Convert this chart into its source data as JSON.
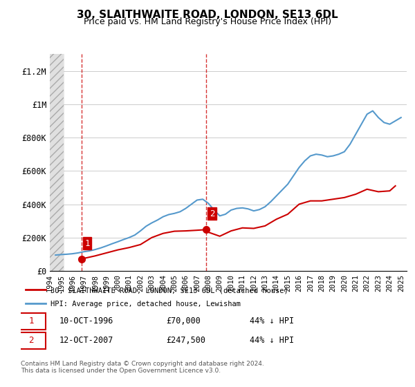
{
  "title": "30, SLAITHWAITE ROAD, LONDON, SE13 6DL",
  "subtitle": "Price paid vs. HM Land Registry's House Price Index (HPI)",
  "ylabel_ticks": [
    "£0",
    "£200K",
    "£400K",
    "£600K",
    "£800K",
    "£1M",
    "£1.2M"
  ],
  "ytick_values": [
    0,
    200000,
    400000,
    600000,
    800000,
    1000000,
    1200000
  ],
  "ylim": [
    0,
    1300000
  ],
  "xlim_start": 1994.0,
  "xlim_end": 2025.5,
  "sale1_x": 1996.78,
  "sale1_y": 70000,
  "sale1_label": "1",
  "sale2_x": 2007.78,
  "sale2_y": 247500,
  "sale2_label": "2",
  "vline1_x": 1996.78,
  "vline2_x": 2007.78,
  "red_line_color": "#cc0000",
  "blue_line_color": "#5599cc",
  "shaded_color": "#dddddd",
  "annotation_box_color": "#cc0000",
  "legend_label_red": "30, SLAITHWAITE ROAD, LONDON, SE13 6DL (detached house)",
  "legend_label_blue": "HPI: Average price, detached house, Lewisham",
  "footer": "Contains HM Land Registry data © Crown copyright and database right 2024.\nThis data is licensed under the Open Government Licence v3.0.",
  "table_row1": [
    "1",
    "10-OCT-1996",
    "£70,000",
    "44% ↓ HPI"
  ],
  "table_row2": [
    "2",
    "12-OCT-2007",
    "£247,500",
    "44% ↓ HPI"
  ],
  "hpi_years": [
    1994.5,
    1995.0,
    1995.5,
    1996.0,
    1996.5,
    1997.0,
    1997.5,
    1998.0,
    1998.5,
    1999.0,
    1999.5,
    2000.0,
    2000.5,
    2001.0,
    2001.5,
    2002.0,
    2002.5,
    2003.0,
    2003.5,
    2004.0,
    2004.5,
    2005.0,
    2005.5,
    2006.0,
    2006.5,
    2007.0,
    2007.5,
    2008.0,
    2008.5,
    2009.0,
    2009.5,
    2010.0,
    2010.5,
    2011.0,
    2011.5,
    2012.0,
    2012.5,
    2013.0,
    2013.5,
    2014.0,
    2014.5,
    2015.0,
    2015.5,
    2016.0,
    2016.5,
    2017.0,
    2017.5,
    2018.0,
    2018.5,
    2019.0,
    2019.5,
    2020.0,
    2020.5,
    2021.0,
    2021.5,
    2022.0,
    2022.5,
    2023.0,
    2023.5,
    2024.0,
    2024.5,
    2025.0
  ],
  "hpi_values": [
    95000,
    98000,
    100000,
    103000,
    108000,
    115000,
    120000,
    128000,
    138000,
    150000,
    163000,
    175000,
    188000,
    200000,
    215000,
    240000,
    268000,
    288000,
    305000,
    325000,
    338000,
    345000,
    355000,
    375000,
    400000,
    425000,
    430000,
    405000,
    365000,
    330000,
    340000,
    365000,
    375000,
    378000,
    372000,
    360000,
    368000,
    385000,
    415000,
    450000,
    485000,
    520000,
    570000,
    620000,
    660000,
    690000,
    700000,
    695000,
    685000,
    690000,
    700000,
    715000,
    760000,
    820000,
    880000,
    940000,
    960000,
    920000,
    890000,
    880000,
    900000,
    920000
  ],
  "price_years": [
    1996.78,
    1997.0,
    1998.0,
    1999.0,
    2000.0,
    2001.0,
    2002.0,
    2003.0,
    2004.0,
    2005.0,
    2006.0,
    2007.0,
    2007.78,
    2008.0,
    2009.0,
    2010.0,
    2011.0,
    2012.0,
    2013.0,
    2014.0,
    2015.0,
    2016.0,
    2017.0,
    2018.0,
    2019.0,
    2020.0,
    2021.0,
    2022.0,
    2023.0,
    2024.0,
    2024.5
  ],
  "price_values": [
    70000,
    75000,
    90000,
    108000,
    126000,
    140000,
    158000,
    200000,
    225000,
    238000,
    240000,
    244000,
    247500,
    232000,
    208000,
    240000,
    258000,
    255000,
    270000,
    310000,
    340000,
    400000,
    420000,
    420000,
    430000,
    440000,
    460000,
    490000,
    475000,
    480000,
    510000
  ]
}
